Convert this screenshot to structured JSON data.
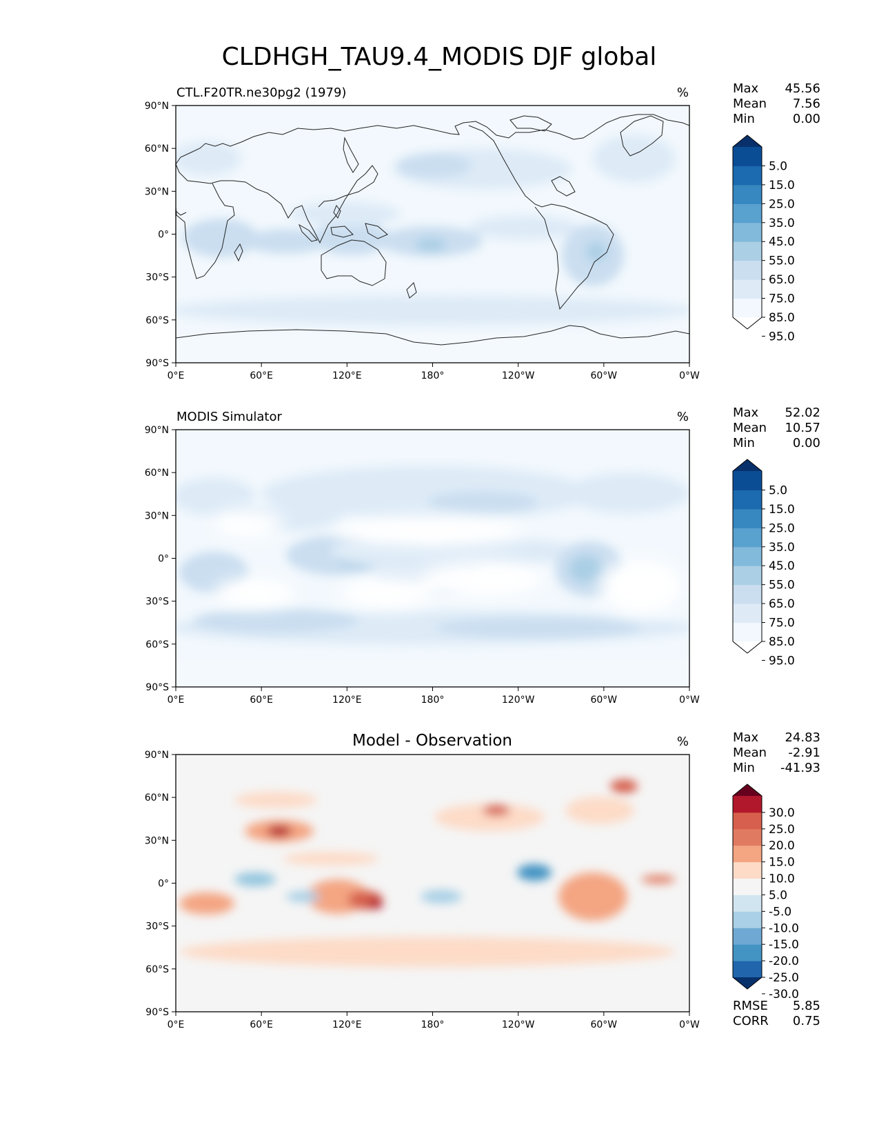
{
  "figure_title": "CLDHGH_TAU9.4_MODIS DJF global",
  "chart_data": [
    {
      "type": "heatmap",
      "panel_id": "test",
      "title_left": "CTL.F20TR.ne30pg2 (1979)",
      "title_center": "",
      "units": "%",
      "stats": [
        {
          "label": "Max",
          "value": "45.56"
        },
        {
          "label": "Mean",
          "value": "7.56"
        },
        {
          "label": "Min",
          "value": "0.00"
        }
      ],
      "colorbar": {
        "scheme": "Blues",
        "levels": [
          "5.0",
          "15.0",
          "25.0",
          "35.0",
          "45.0",
          "55.0",
          "65.0",
          "75.0",
          "85.0",
          "95.0"
        ],
        "colors": [
          "#ffffff",
          "#f2f8fd",
          "#deebf7",
          "#cadef0",
          "#abcfe5",
          "#82badb",
          "#59a1cf",
          "#3787c0",
          "#1c6aaf",
          "#0b4d94",
          "#08306b"
        ]
      },
      "x_ticks": [
        "0°E",
        "60°E",
        "120°E",
        "180°",
        "120°W",
        "60°W",
        "0°W"
      ],
      "y_ticks": [
        "90°N",
        "60°N",
        "30°N",
        "0°",
        "30°S",
        "60°S",
        "90°S"
      ],
      "xlim": [
        0,
        360
      ],
      "ylim": [
        -90,
        90
      ]
    },
    {
      "type": "heatmap",
      "panel_id": "ref",
      "title_left": "MODIS Simulator",
      "title_center": "",
      "units": "%",
      "stats": [
        {
          "label": "Max",
          "value": "52.02"
        },
        {
          "label": "Mean",
          "value": "10.57"
        },
        {
          "label": "Min",
          "value": "0.00"
        }
      ],
      "colorbar": {
        "scheme": "Blues",
        "levels": [
          "5.0",
          "15.0",
          "25.0",
          "35.0",
          "45.0",
          "55.0",
          "65.0",
          "75.0",
          "85.0",
          "95.0"
        ],
        "colors": [
          "#ffffff",
          "#f2f8fd",
          "#deebf7",
          "#cadef0",
          "#abcfe5",
          "#82badb",
          "#59a1cf",
          "#3787c0",
          "#1c6aaf",
          "#0b4d94",
          "#08306b"
        ]
      },
      "x_ticks": [
        "0°E",
        "60°E",
        "120°E",
        "180°",
        "120°W",
        "60°W",
        "0°W"
      ],
      "y_ticks": [
        "90°N",
        "60°N",
        "30°N",
        "0°",
        "30°S",
        "60°S",
        "90°S"
      ],
      "xlim": [
        0,
        360
      ],
      "ylim": [
        -90,
        90
      ]
    },
    {
      "type": "heatmap",
      "panel_id": "diff",
      "title_left": "",
      "title_center": "Model - Observation",
      "units": "%",
      "stats": [
        {
          "label": "Max",
          "value": "24.83"
        },
        {
          "label": "Mean",
          "value": "-2.91"
        },
        {
          "label": "Min",
          "value": "-41.93"
        }
      ],
      "colorbar": {
        "scheme": "RdBu_r",
        "levels": [
          "30.0",
          "25.0",
          "20.0",
          "15.0",
          "10.0",
          "5.0",
          "-5.0",
          "-10.0",
          "-15.0",
          "-20.0",
          "-25.0",
          "-30.0"
        ],
        "colors": [
          "#08306b",
          "#2166ac",
          "#4393c3",
          "#6fa9d3",
          "#a9d0e6",
          "#d1e5f0",
          "#f5f5f5",
          "#fddbc7",
          "#f4a582",
          "#e07b62",
          "#d6604d",
          "#b2182b",
          "#67001f"
        ]
      },
      "x_ticks": [
        "0°E",
        "60°E",
        "120°E",
        "180°",
        "120°W",
        "60°W",
        "0°W"
      ],
      "y_ticks": [
        "90°N",
        "60°N",
        "30°N",
        "0°",
        "30°S",
        "60°S",
        "90°S"
      ],
      "xlim": [
        0,
        360
      ],
      "ylim": [
        -90,
        90
      ],
      "metrics": [
        {
          "label": "RMSE",
          "value": "5.85"
        },
        {
          "label": "CORR",
          "value": "0.75"
        }
      ]
    }
  ]
}
